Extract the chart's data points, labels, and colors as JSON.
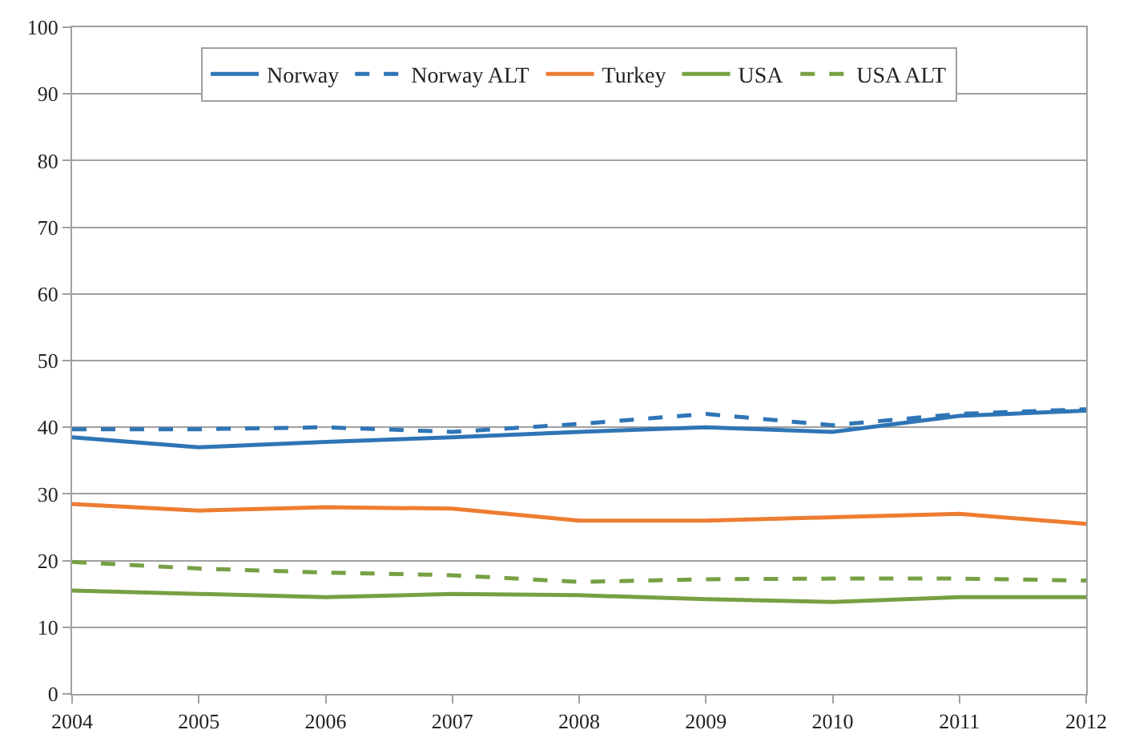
{
  "chart_data": {
    "type": "line",
    "x": [
      2004,
      2005,
      2006,
      2007,
      2008,
      2009,
      2010,
      2011,
      2012
    ],
    "series": [
      {
        "name": "Norway",
        "color": "#2e75b6",
        "line_style": "solid",
        "values": [
          38.5,
          37,
          37.8,
          38.5,
          39.3,
          40,
          39.3,
          41.7,
          42.5
        ]
      },
      {
        "name": "Norway ALT",
        "color": "#2e75b6",
        "line_style": "dashed",
        "values": [
          39.7,
          39.7,
          40,
          39.3,
          40.5,
          42,
          40.3,
          42,
          42.7
        ]
      },
      {
        "name": "Turkey",
        "color": "#ed7d31",
        "line_style": "solid",
        "values": [
          28.5,
          27.5,
          28,
          27.8,
          26,
          26,
          26.5,
          27,
          25.5
        ]
      },
      {
        "name": "USA",
        "color": "#77a043",
        "line_style": "solid",
        "values": [
          15.5,
          15,
          14.5,
          15,
          14.8,
          14.2,
          13.8,
          14.5,
          14.5
        ]
      },
      {
        "name": "USA ALT",
        "color": "#77a043",
        "line_style": "dashed",
        "values": [
          19.8,
          18.8,
          18.2,
          17.8,
          16.8,
          17.2,
          17.3,
          17.3,
          17
        ]
      }
    ],
    "xlim": [
      2004,
      2012
    ],
    "xticks": [
      2004,
      2005,
      2006,
      2007,
      2008,
      2009,
      2010,
      2011,
      2012
    ],
    "ylim": [
      0,
      100
    ],
    "yticks": [
      0,
      10,
      20,
      30,
      40,
      50,
      60,
      70,
      80,
      90,
      100
    ],
    "grid": "y",
    "legend": "top",
    "marker": "none"
  }
}
